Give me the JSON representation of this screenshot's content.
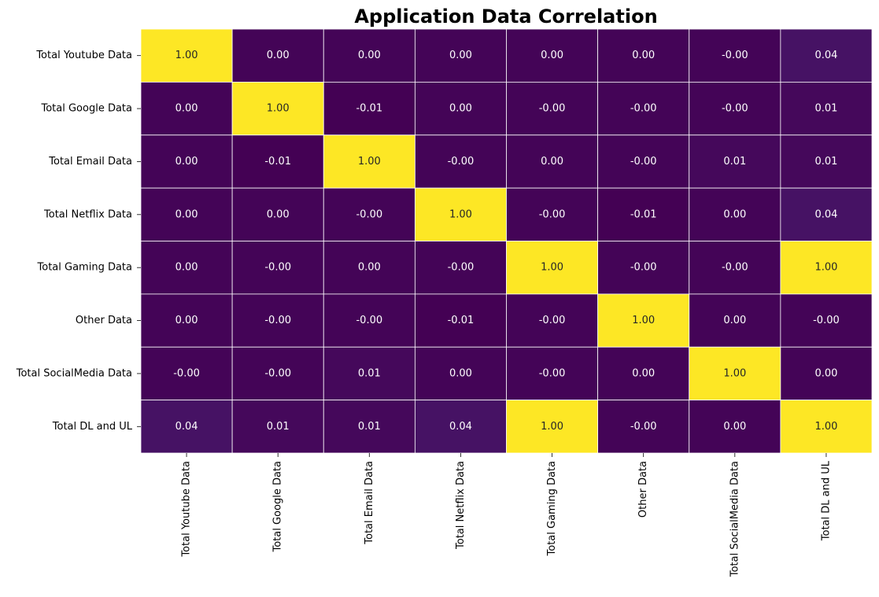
{
  "chart_data": {
    "type": "heatmap",
    "title": "Application Data Correlation",
    "rows": [
      "Total Youtube Data",
      "Total Google Data",
      "Total Email Data",
      "Total Netflix Data",
      "Total Gaming Data",
      "Other Data",
      "Total SocialMedia Data",
      "Total DL and UL"
    ],
    "columns": [
      "Total Youtube Data",
      "Total Google Data",
      "Total Email Data",
      "Total Netflix Data",
      "Total Gaming Data",
      "Other Data",
      "Total SocialMedia Data",
      "Total DL and UL"
    ],
    "values": [
      [
        1.0,
        0.0,
        0.0,
        0.0,
        0.0,
        0.0,
        -0.0,
        0.04
      ],
      [
        0.0,
        1.0,
        -0.01,
        0.0,
        -0.0,
        -0.0,
        -0.0,
        0.01
      ],
      [
        0.0,
        -0.01,
        1.0,
        -0.0,
        0.0,
        -0.0,
        0.01,
        0.01
      ],
      [
        0.0,
        0.0,
        -0.0,
        1.0,
        -0.0,
        -0.01,
        0.0,
        0.04
      ],
      [
        0.0,
        -0.0,
        0.0,
        -0.0,
        1.0,
        -0.0,
        -0.0,
        1.0
      ],
      [
        0.0,
        -0.0,
        -0.0,
        -0.01,
        -0.0,
        1.0,
        0.0,
        -0.0
      ],
      [
        -0.0,
        -0.0,
        0.01,
        0.0,
        -0.0,
        0.0,
        1.0,
        0.0
      ],
      [
        0.04,
        0.01,
        0.01,
        0.04,
        1.0,
        -0.0,
        0.0,
        1.0
      ]
    ],
    "cell_labels": [
      [
        "1.00",
        "0.00",
        "0.00",
        "0.00",
        "0.00",
        "0.00",
        "-0.00",
        "0.04"
      ],
      [
        "0.00",
        "1.00",
        "-0.01",
        "0.00",
        "-0.00",
        "-0.00",
        "-0.00",
        "0.01"
      ],
      [
        "0.00",
        "-0.01",
        "1.00",
        "-0.00",
        "0.00",
        "-0.00",
        "0.01",
        "0.01"
      ],
      [
        "0.00",
        "0.00",
        "-0.00",
        "1.00",
        "-0.00",
        "-0.01",
        "0.00",
        "0.04"
      ],
      [
        "0.00",
        "-0.00",
        "0.00",
        "-0.00",
        "1.00",
        "-0.00",
        "-0.00",
        "1.00"
      ],
      [
        "0.00",
        "-0.00",
        "-0.00",
        "-0.01",
        "-0.00",
        "1.00",
        "0.00",
        "-0.00"
      ],
      [
        "-0.00",
        "-0.00",
        "0.01",
        "0.00",
        "-0.00",
        "0.00",
        "1.00",
        "0.00"
      ],
      [
        "0.04",
        "0.01",
        "0.01",
        "0.04",
        "1.00",
        "-0.00",
        "0.00",
        "1.00"
      ]
    ],
    "colormap": "viridis",
    "value_range": [
      -0.01,
      1.0
    ],
    "colorbar": false,
    "grid": false,
    "colors": {
      "low": "#440154",
      "high": "#fde725",
      "cell_border": "#ffffff",
      "text_on_dark": "#ffffff",
      "text_on_light": "#262626"
    }
  }
}
